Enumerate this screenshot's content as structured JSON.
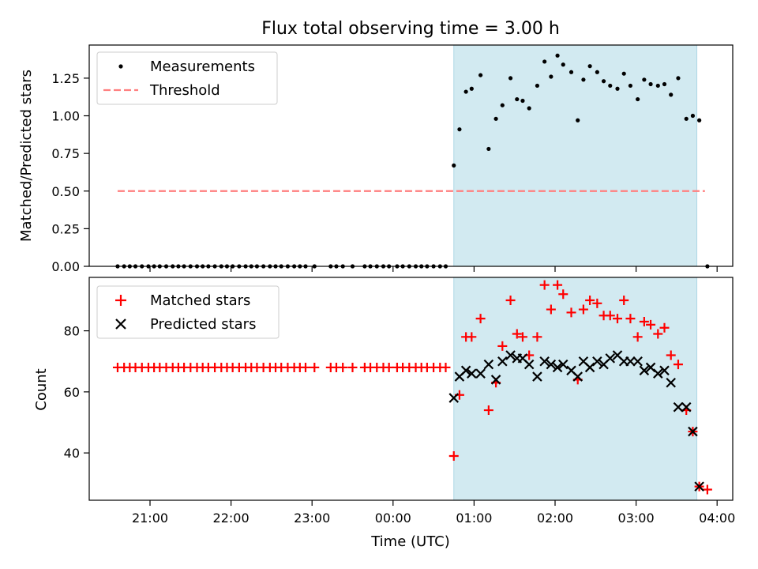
{
  "chart_data": [
    {
      "type": "scatter",
      "title": "Flux total observing time = 3.00 h",
      "ylabel": "Matched/Predicted stars",
      "xlabel": "",
      "x_tick_labels": [
        "21:00",
        "22:00",
        "23:00",
        "00:00",
        "01:00",
        "02:00",
        "03:00",
        "04:00"
      ],
      "x_tick_labels_shown": false,
      "yticks": [
        0.0,
        0.25,
        0.5,
        0.75,
        1.0,
        1.25
      ],
      "ytick_labels": [
        "0.00",
        "0.25",
        "0.50",
        "0.75",
        "1.00",
        "1.25"
      ],
      "ylim": [
        0,
        1.47
      ],
      "grid": false,
      "legend_position": "upper left",
      "observing_window": {
        "start_hours": 24.75,
        "end_hours": 27.75,
        "color": "#add8e6"
      },
      "threshold": {
        "name": "Threshold",
        "value": 0.5,
        "x_range_hours": [
          20.6,
          27.85
        ],
        "color": "#ff7f7f"
      },
      "series": [
        {
          "name": "Measurements",
          "color": "#000000",
          "x_hours": [
            20.6,
            20.68,
            20.75,
            20.82,
            20.9,
            20.98,
            21.05,
            21.12,
            21.2,
            21.28,
            21.35,
            21.42,
            21.5,
            21.58,
            21.65,
            21.72,
            21.8,
            21.88,
            21.95,
            22.02,
            22.1,
            22.18,
            22.25,
            22.32,
            22.4,
            22.48,
            22.55,
            22.62,
            22.7,
            22.78,
            22.85,
            22.92,
            23.03,
            23.23,
            23.3,
            23.38,
            23.5,
            23.65,
            23.72,
            23.8,
            23.88,
            23.95,
            24.05,
            24.12,
            24.2,
            24.28,
            24.35,
            24.42,
            24.5,
            24.58,
            24.65,
            24.75,
            24.82,
            24.9,
            24.97,
            25.08,
            25.18,
            25.27,
            25.35,
            25.45,
            25.53,
            25.6,
            25.68,
            25.78,
            25.87,
            25.95,
            26.03,
            26.1,
            26.2,
            26.28,
            26.35,
            26.43,
            26.52,
            26.6,
            26.68,
            26.77,
            26.85,
            26.93,
            27.02,
            27.1,
            27.18,
            27.27,
            27.35,
            27.43,
            27.52,
            27.62,
            27.7,
            27.78,
            27.88
          ],
          "y": [
            0,
            0,
            0,
            0,
            0,
            0,
            0,
            0,
            0,
            0,
            0,
            0,
            0,
            0,
            0,
            0,
            0,
            0,
            0,
            0,
            0,
            0,
            0,
            0,
            0,
            0,
            0,
            0,
            0,
            0,
            0,
            0,
            0,
            0,
            0,
            0,
            0,
            0,
            0,
            0,
            0,
            0,
            0,
            0,
            0,
            0,
            0,
            0,
            0,
            0,
            0,
            0.67,
            0.91,
            1.16,
            1.18,
            1.27,
            0.78,
            0.98,
            1.07,
            1.25,
            1.11,
            1.1,
            1.05,
            1.2,
            1.36,
            1.26,
            1.4,
            1.34,
            1.29,
            0.97,
            1.24,
            1.33,
            1.29,
            1.23,
            1.2,
            1.18,
            1.28,
            1.2,
            1.11,
            1.24,
            1.21,
            1.2,
            1.21,
            1.14,
            1.25,
            0.98,
            1.0,
            0.97,
            0
          ]
        }
      ]
    },
    {
      "type": "scatter",
      "xlabel": "Time (UTC)",
      "ylabel": "Count",
      "x_tick_labels": [
        "21:00",
        "22:00",
        "23:00",
        "00:00",
        "01:00",
        "02:00",
        "03:00",
        "04:00"
      ],
      "x_tick_labels_shown": true,
      "yticks": [
        40,
        60,
        80
      ],
      "ytick_labels": [
        "40",
        "60",
        "80"
      ],
      "ylim": [
        24.5,
        97.5
      ],
      "grid": false,
      "legend_position": "upper left",
      "series": [
        {
          "name": "Matched stars",
          "marker": "plus",
          "color": "#ff0000",
          "x_hours": [
            20.6,
            20.68,
            20.75,
            20.82,
            20.9,
            20.98,
            21.05,
            21.12,
            21.2,
            21.28,
            21.35,
            21.42,
            21.5,
            21.58,
            21.65,
            21.72,
            21.8,
            21.88,
            21.95,
            22.02,
            22.1,
            22.18,
            22.25,
            22.32,
            22.4,
            22.48,
            22.55,
            22.62,
            22.7,
            22.78,
            22.85,
            22.92,
            23.03,
            23.23,
            23.3,
            23.38,
            23.5,
            23.65,
            23.72,
            23.8,
            23.88,
            23.95,
            24.05,
            24.12,
            24.2,
            24.28,
            24.35,
            24.42,
            24.5,
            24.58,
            24.65,
            24.75,
            24.82,
            24.9,
            24.97,
            25.08,
            25.18,
            25.27,
            25.35,
            25.45,
            25.53,
            25.6,
            25.68,
            25.78,
            25.87,
            25.95,
            26.03,
            26.1,
            26.2,
            26.28,
            26.35,
            26.43,
            26.52,
            26.6,
            26.68,
            26.77,
            26.85,
            26.93,
            27.02,
            27.1,
            27.18,
            27.27,
            27.35,
            27.43,
            27.52,
            27.62,
            27.7,
            27.78,
            27.88
          ],
          "y": [
            68,
            68,
            68,
            68,
            68,
            68,
            68,
            68,
            68,
            68,
            68,
            68,
            68,
            68,
            68,
            68,
            68,
            68,
            68,
            68,
            68,
            68,
            68,
            68,
            68,
            68,
            68,
            68,
            68,
            68,
            68,
            68,
            68,
            68,
            68,
            68,
            68,
            68,
            68,
            68,
            68,
            68,
            68,
            68,
            68,
            68,
            68,
            68,
            68,
            68,
            68,
            39,
            59,
            78,
            78,
            84,
            54,
            63,
            75,
            90,
            79,
            78,
            72,
            78,
            95,
            87,
            95,
            92,
            86,
            64,
            87,
            90,
            89,
            85,
            85,
            84,
            90,
            84,
            78,
            83,
            82,
            79,
            81,
            72,
            69,
            54,
            47,
            29,
            28
          ]
        },
        {
          "name": "Predicted stars",
          "marker": "x",
          "color": "#000000",
          "x_hours": [
            24.75,
            24.82,
            24.9,
            24.97,
            25.08,
            25.18,
            25.27,
            25.35,
            25.45,
            25.53,
            25.6,
            25.68,
            25.78,
            25.87,
            25.95,
            26.03,
            26.1,
            26.2,
            26.28,
            26.35,
            26.43,
            26.52,
            26.6,
            26.68,
            26.77,
            26.85,
            26.93,
            27.02,
            27.1,
            27.18,
            27.27,
            27.35,
            27.43,
            27.52,
            27.62,
            27.7,
            27.78
          ],
          "y": [
            58,
            65,
            67,
            66,
            66,
            69,
            64,
            70,
            72,
            71,
            71,
            69,
            65,
            70,
            69,
            68,
            69,
            67,
            65,
            70,
            68,
            70,
            69,
            71,
            72,
            70,
            70,
            70,
            67,
            68,
            66,
            67,
            63,
            55,
            55,
            47,
            29
          ]
        }
      ]
    }
  ]
}
